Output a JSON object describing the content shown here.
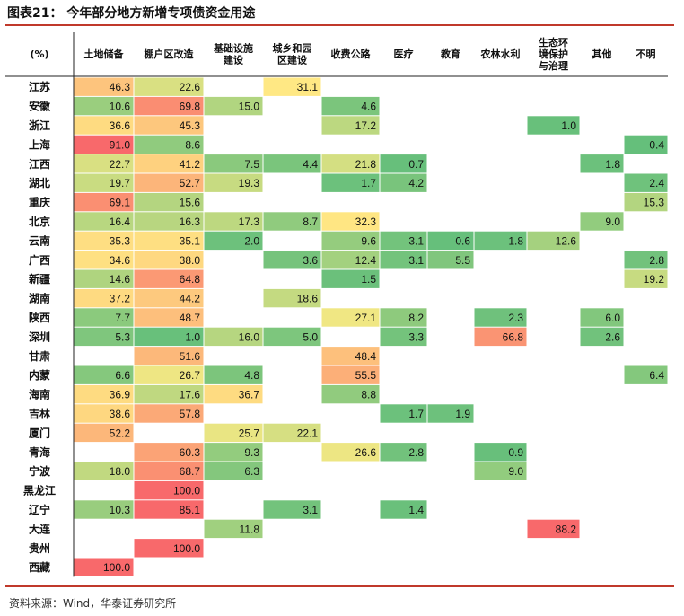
{
  "title": "图表21： 今年部分地方新增专项债资金用途",
  "source": "资料来源：Wind，华泰证券研究所",
  "chart_data": {
    "type": "heatmap",
    "unit_label": "(%)",
    "columns": [
      [
        "土地储备"
      ],
      [
        "棚户区改造"
      ],
      [
        "基础设施",
        "建设"
      ],
      [
        "城乡和园",
        "区建设"
      ],
      [
        "收费公路"
      ],
      [
        "医疗"
      ],
      [
        "教育"
      ],
      [
        "农林水利"
      ],
      [
        "生态环",
        "境保护",
        "与治理"
      ],
      [
        "其他"
      ],
      [
        "不明"
      ]
    ],
    "rows": [
      "江苏",
      "安徽",
      "浙江",
      "上海",
      "江西",
      "湖北",
      "重庆",
      "北京",
      "云南",
      "广西",
      "新疆",
      "湖南",
      "陕西",
      "深圳",
      "甘肃",
      "内蒙",
      "海南",
      "吉林",
      "厦门",
      "青海",
      "宁波",
      "黑龙江",
      "辽宁",
      "大连",
      "贵州",
      "西藏"
    ],
    "values": [
      [
        46.3,
        22.6,
        null,
        31.1,
        null,
        null,
        null,
        null,
        null,
        null,
        null
      ],
      [
        10.6,
        69.8,
        15.0,
        null,
        4.6,
        null,
        null,
        null,
        null,
        null,
        null
      ],
      [
        36.6,
        45.3,
        null,
        null,
        17.2,
        null,
        null,
        null,
        1.0,
        null,
        null
      ],
      [
        91.0,
        8.6,
        null,
        null,
        null,
        null,
        null,
        null,
        null,
        null,
        0.4
      ],
      [
        22.7,
        41.2,
        7.5,
        4.4,
        21.8,
        0.7,
        null,
        null,
        null,
        1.8,
        null
      ],
      [
        19.7,
        52.7,
        19.3,
        null,
        1.7,
        4.2,
        null,
        null,
        null,
        null,
        2.4
      ],
      [
        69.1,
        15.6,
        null,
        null,
        null,
        null,
        null,
        null,
        null,
        null,
        15.3
      ],
      [
        16.4,
        16.3,
        17.3,
        8.7,
        32.3,
        null,
        null,
        null,
        null,
        9.0,
        null
      ],
      [
        35.3,
        35.1,
        2.0,
        null,
        9.6,
        3.1,
        0.6,
        1.8,
        12.6,
        null,
        null
      ],
      [
        34.6,
        38.0,
        null,
        3.6,
        12.4,
        3.1,
        5.5,
        null,
        null,
        null,
        2.8
      ],
      [
        14.6,
        64.8,
        null,
        null,
        1.5,
        null,
        null,
        null,
        null,
        null,
        19.2
      ],
      [
        37.2,
        44.2,
        null,
        18.6,
        null,
        null,
        null,
        null,
        null,
        null,
        null
      ],
      [
        7.7,
        48.7,
        null,
        null,
        27.1,
        8.2,
        null,
        2.3,
        null,
        6.0,
        null
      ],
      [
        5.3,
        1.0,
        16.0,
        5.0,
        null,
        3.3,
        null,
        66.8,
        null,
        2.6,
        null
      ],
      [
        null,
        51.6,
        null,
        null,
        48.4,
        null,
        null,
        null,
        null,
        null,
        null
      ],
      [
        6.6,
        26.7,
        4.8,
        null,
        55.5,
        null,
        null,
        null,
        null,
        null,
        6.4
      ],
      [
        36.9,
        17.6,
        36.7,
        null,
        8.8,
        null,
        null,
        null,
        null,
        null,
        null
      ],
      [
        38.6,
        57.8,
        null,
        null,
        null,
        1.7,
        1.9,
        null,
        null,
        null,
        null
      ],
      [
        52.2,
        null,
        25.7,
        22.1,
        null,
        null,
        null,
        null,
        null,
        null,
        null
      ],
      [
        null,
        60.3,
        9.3,
        null,
        26.6,
        2.8,
        null,
        0.9,
        null,
        null,
        null
      ],
      [
        18.0,
        68.7,
        6.3,
        null,
        null,
        null,
        null,
        9.0,
        null,
        null,
        null
      ],
      [
        null,
        100.0,
        null,
        null,
        null,
        null,
        null,
        null,
        null,
        null,
        null
      ],
      [
        10.3,
        85.1,
        null,
        3.1,
        null,
        1.4,
        null,
        null,
        null,
        null,
        null
      ],
      [
        null,
        null,
        11.8,
        null,
        null,
        null,
        null,
        null,
        88.2,
        null,
        null
      ],
      [
        null,
        100.0,
        null,
        null,
        null,
        null,
        null,
        null,
        null,
        null,
        null
      ],
      [
        100.0,
        null,
        null,
        null,
        null,
        null,
        null,
        null,
        null,
        null,
        null
      ]
    ],
    "color_scale": {
      "low": "#63be7b",
      "mid": "#ffeb84",
      "high": "#f8696b"
    },
    "value_range": [
      0,
      100
    ]
  }
}
